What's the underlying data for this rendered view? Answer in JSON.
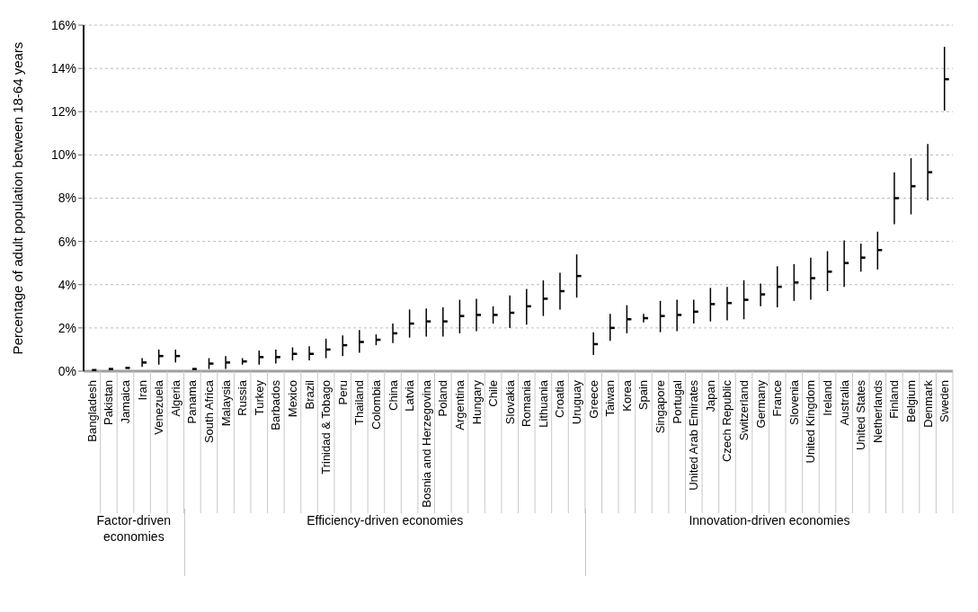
{
  "chart_data": {
    "type": "scatter",
    "ylabel": "Percentage of adult population between 18-64 years",
    "categories": [
      "Bangladesh",
      "Pakistan",
      "Jamaica",
      "Iran",
      "Venezuela",
      "Algeria",
      "Panama",
      "South Africa",
      "Malaysia",
      "Russia",
      "Turkey",
      "Barbados",
      "Mexico",
      "Brazil",
      "Trinidad & Tobago",
      "Peru",
      "Thailand",
      "Colombia",
      "China",
      "Latvia",
      "Bosnia and Herzegovina",
      "Poland",
      "Argentina",
      "Hungary",
      "Chile",
      "Slovakia",
      "Romania",
      "Lithuania",
      "Croatia",
      "Uruguay",
      "Greece",
      "Taiwan",
      "Korea",
      "Spain",
      "Singapore",
      "Portugal",
      "United Arab Emirates",
      "Japan",
      "Czech Republic",
      "Switzerland",
      "Germany",
      "France",
      "Slovenia",
      "United Kingdom",
      "Ireland",
      "Australia",
      "United States",
      "Netherlands",
      "Finland",
      "Belgium",
      "Denmark",
      "Sweden"
    ],
    "series": [
      {
        "color": "#000000",
        "values": [
          0.05,
          0.1,
          0.15,
          0.4,
          0.7,
          0.7,
          null,
          null,
          null,
          null,
          null,
          null,
          null,
          null,
          null,
          null,
          null,
          null,
          null,
          null,
          null,
          null,
          null,
          null,
          null,
          null,
          null,
          null,
          null,
          null,
          null,
          null,
          null,
          null,
          null,
          null,
          null,
          null,
          null,
          null,
          null,
          null,
          null,
          null,
          null,
          null,
          null,
          null,
          null,
          null,
          null,
          null
        ],
        "errors": [
          null,
          null,
          null,
          [
            0.2,
            0.6
          ],
          [
            0.3,
            1.0
          ],
          [
            0.4,
            1.0
          ],
          null,
          null,
          null,
          null,
          null,
          null,
          null,
          null,
          null,
          null,
          null,
          null,
          null,
          null,
          null,
          null,
          null,
          null,
          null,
          null,
          null,
          null,
          null,
          null,
          null,
          null,
          null,
          null,
          null,
          null,
          null,
          null,
          null,
          null,
          null,
          null,
          null,
          null,
          null,
          null,
          null,
          null,
          null,
          null,
          null,
          null
        ]
      },
      {
        "color": "#000000",
        "values": [
          null,
          null,
          null,
          null,
          null,
          null,
          0.1,
          0.35,
          0.4,
          0.45,
          0.65,
          0.65,
          0.8,
          0.8,
          1.0,
          1.2,
          1.35,
          1.45,
          1.75,
          2.2,
          2.3,
          2.3,
          2.55,
          2.6,
          2.6,
          2.7,
          3.0,
          3.35,
          3.7,
          4.4,
          null,
          null,
          null,
          null,
          null,
          null,
          null,
          null,
          null,
          null,
          null,
          null,
          null,
          null,
          null,
          null,
          null,
          null,
          null,
          null,
          null,
          null
        ],
        "errors": [
          null,
          null,
          null,
          null,
          null,
          null,
          null,
          [
            0.1,
            0.6
          ],
          [
            0.1,
            0.7
          ],
          [
            0.3,
            0.6
          ],
          [
            0.3,
            0.95
          ],
          [
            0.35,
            1.0
          ],
          [
            0.5,
            1.1
          ],
          [
            0.5,
            1.15
          ],
          [
            0.6,
            1.5
          ],
          [
            0.7,
            1.65
          ],
          [
            0.85,
            1.9
          ],
          [
            1.2,
            1.7
          ],
          [
            1.3,
            2.2
          ],
          [
            1.55,
            2.85
          ],
          [
            1.6,
            2.9
          ],
          [
            1.6,
            2.95
          ],
          [
            1.75,
            3.3
          ],
          [
            1.85,
            3.35
          ],
          [
            2.2,
            3.0
          ],
          [
            2.0,
            3.5
          ],
          [
            2.15,
            3.8
          ],
          [
            2.55,
            4.2
          ],
          [
            2.85,
            4.55
          ],
          [
            3.4,
            5.4
          ],
          null,
          null,
          null,
          null,
          null,
          null,
          null,
          null,
          null,
          null,
          null,
          null,
          null,
          null,
          null,
          null,
          null,
          null,
          null,
          null,
          null,
          null
        ]
      },
      {
        "color": "#000000",
        "values": [
          null,
          null,
          null,
          null,
          null,
          null,
          null,
          null,
          null,
          null,
          null,
          null,
          null,
          null,
          null,
          null,
          null,
          null,
          null,
          null,
          null,
          null,
          null,
          null,
          null,
          null,
          null,
          null,
          null,
          null,
          1.25,
          2.0,
          2.4,
          2.45,
          2.55,
          2.6,
          2.75,
          3.1,
          3.15,
          3.3,
          3.55,
          3.9,
          4.1,
          4.3,
          4.6,
          5.0,
          5.25,
          5.6,
          8.0,
          8.55,
          9.2,
          13.5
        ],
        "errors": [
          null,
          null,
          null,
          null,
          null,
          null,
          null,
          null,
          null,
          null,
          null,
          null,
          null,
          null,
          null,
          null,
          null,
          null,
          null,
          null,
          null,
          null,
          null,
          null,
          null,
          null,
          null,
          null,
          null,
          null,
          [
            0.75,
            1.8
          ],
          [
            1.4,
            2.65
          ],
          [
            1.75,
            3.05
          ],
          [
            2.25,
            2.65
          ],
          [
            1.8,
            3.25
          ],
          [
            1.85,
            3.3
          ],
          [
            2.2,
            3.3
          ],
          [
            2.3,
            3.85
          ],
          [
            2.35,
            3.9
          ],
          [
            2.4,
            4.2
          ],
          [
            3.0,
            4.05
          ],
          [
            2.95,
            4.85
          ],
          [
            3.25,
            4.95
          ],
          [
            3.3,
            5.25
          ],
          [
            3.7,
            5.55
          ],
          [
            3.9,
            6.05
          ],
          [
            4.6,
            5.9
          ],
          [
            4.7,
            6.45
          ],
          [
            6.8,
            9.2
          ],
          [
            7.25,
            9.85
          ],
          [
            7.9,
            10.5
          ],
          [
            12.05,
            15.0
          ]
        ]
      }
    ],
    "ylim": [
      0,
      16
    ],
    "yticks": [
      {
        "value": 0,
        "label": "0%"
      },
      {
        "value": 2,
        "label": "2%"
      },
      {
        "value": 4,
        "label": "4%"
      },
      {
        "value": 6,
        "label": "6%"
      },
      {
        "value": 8,
        "label": "8%"
      },
      {
        "value": 10,
        "label": "10%"
      },
      {
        "value": 12,
        "label": "12%"
      },
      {
        "value": 14,
        "label": "14%"
      },
      {
        "value": 16,
        "label": "16%"
      }
    ],
    "grid": "y",
    "annotations": [
      "Factor-driven economies",
      "Efficiency-driven economies",
      "Innovation-driven economies"
    ]
  }
}
